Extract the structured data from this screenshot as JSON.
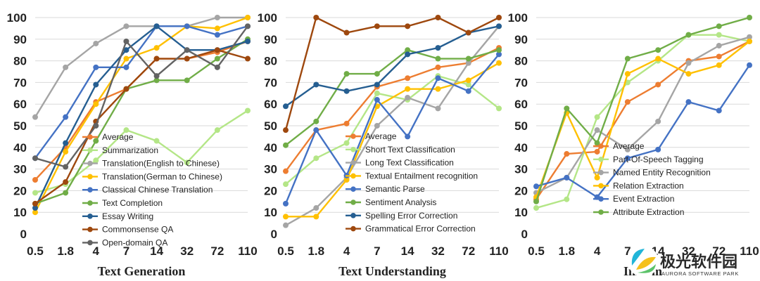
{
  "x_categories": [
    "0.5",
    "1.8",
    "4",
    "7",
    "14",
    "32",
    "72",
    "110"
  ],
  "y_ticks": [
    "0",
    "10",
    "20",
    "30",
    "40",
    "50",
    "60",
    "70",
    "80",
    "90",
    "100"
  ],
  "watermark": {
    "cn": "极光软件园",
    "en": "AURORA SOFTWARE PARK"
  },
  "chart_data": [
    {
      "type": "line",
      "xlabel": "Text Generation",
      "ylim": [
        0,
        100
      ],
      "categories": [
        "0.5",
        "1.8",
        "4",
        "7",
        "14",
        "32",
        "72",
        "110"
      ],
      "legend_position": "bottom-center",
      "series": [
        {
          "name": "Average",
          "color": "#ed7d31",
          "values": [
            25,
            40,
            61,
            67,
            81,
            81,
            84,
            89
          ]
        },
        {
          "name": "Summarization",
          "color": "#b4e687",
          "values": [
            19,
            23,
            34,
            48,
            43,
            33,
            48,
            57
          ]
        },
        {
          "name": "Translation(English to Chinese)",
          "color": "#a5a5a5",
          "values": [
            54,
            77,
            88,
            96,
            96,
            96,
            100,
            100
          ]
        },
        {
          "name": "Translation(German to Chinese)",
          "color": "#ffc000",
          "values": [
            10,
            38,
            60,
            81,
            86,
            96,
            95,
            100
          ]
        },
        {
          "name": "Classical Chinese Translation",
          "color": "#4472c4",
          "values": [
            35,
            54,
            77,
            77,
            96,
            96,
            92,
            96
          ]
        },
        {
          "name": "Text Completion",
          "color": "#70ad47",
          "values": [
            14,
            19,
            43,
            67,
            71,
            71,
            81,
            90
          ]
        },
        {
          "name": "Essay Writing",
          "color": "#255e91",
          "values": [
            12,
            42,
            69,
            85,
            96,
            85,
            85,
            89
          ]
        },
        {
          "name": "Commonsense QA",
          "color": "#9e480e",
          "values": [
            14,
            24,
            52,
            67,
            81,
            81,
            85,
            81
          ]
        },
        {
          "name": "Open-domain QA",
          "color": "#636363",
          "values": [
            35,
            31,
            50,
            89,
            73,
            85,
            77,
            96
          ]
        }
      ]
    },
    {
      "type": "line",
      "xlabel": "Text Understanding",
      "ylim": [
        0,
        100
      ],
      "categories": [
        "0.5",
        "1.8",
        "4",
        "7",
        "14",
        "32",
        "72",
        "110"
      ],
      "legend_position": "bottom-right",
      "series": [
        {
          "name": "Average",
          "color": "#ed7d31",
          "values": [
            29,
            48,
            51,
            68,
            72,
            77,
            79,
            86
          ]
        },
        {
          "name": "Short Text Classification",
          "color": "#b4e687",
          "values": [
            23,
            35,
            42,
            65,
            62,
            73,
            69,
            58
          ]
        },
        {
          "name": "Long Text Classification",
          "color": "#a5a5a5",
          "values": [
            4,
            12,
            26,
            50,
            63,
            58,
            79,
            96
          ]
        },
        {
          "name": "Textual Entailment recognition",
          "color": "#ffc000",
          "values": [
            8,
            8,
            25,
            59,
            67,
            67,
            71,
            79
          ]
        },
        {
          "name": "Semantic Parse",
          "color": "#4472c4",
          "values": [
            14,
            48,
            27,
            62,
            45,
            72,
            66,
            83
          ]
        },
        {
          "name": "Sentiment Analysis",
          "color": "#70ad47",
          "values": [
            41,
            52,
            74,
            74,
            85,
            81,
            81,
            85
          ]
        },
        {
          "name": "Spelling Error Correction",
          "color": "#255e91",
          "values": [
            59,
            69,
            66,
            69,
            83,
            86,
            93,
            96
          ]
        },
        {
          "name": "Grammatical Error Correction",
          "color": "#9e480e",
          "values": [
            48,
            100,
            93,
            96,
            96,
            100,
            93,
            100
          ]
        }
      ]
    },
    {
      "type": "line",
      "xlabel": "Inform",
      "ylim": [
        0,
        100
      ],
      "categories": [
        "0.5",
        "1.8",
        "4",
        "7",
        "14",
        "32",
        "72",
        "110"
      ],
      "legend_position": "bottom-right",
      "series": [
        {
          "name": "Average",
          "color": "#ed7d31",
          "values": [
            16,
            37,
            38,
            61,
            69,
            80,
            82,
            89
          ]
        },
        {
          "name": "Part-Of-Speech Tagging",
          "color": "#b4e687",
          "values": [
            12,
            16,
            54,
            70,
            80,
            92,
            92,
            89
          ]
        },
        {
          "name": "Named Entity Recognition",
          "color": "#a5a5a5",
          "values": [
            19,
            26,
            48,
            39,
            52,
            79,
            87,
            91
          ]
        },
        {
          "name": "Relation Extraction",
          "color": "#ffc000",
          "values": [
            17,
            56,
            26,
            74,
            81,
            74,
            78,
            89
          ]
        },
        {
          "name": "Event Extraction",
          "color": "#4472c4",
          "values": [
            22,
            26,
            17,
            35,
            39,
            61,
            57,
            78
          ]
        },
        {
          "name": "Attribute Extraction",
          "color": "#70ad47",
          "values": [
            15,
            58,
            42,
            81,
            85,
            92,
            96,
            100
          ]
        }
      ]
    }
  ]
}
